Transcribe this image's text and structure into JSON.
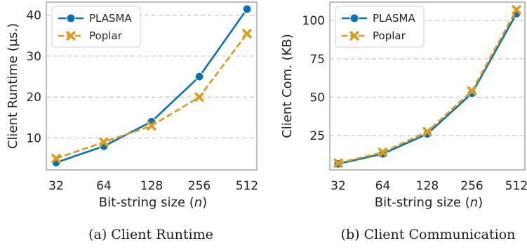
{
  "colors": {
    "plasma": "#0a72b2",
    "poplar": "#de9a1a",
    "grid": "#c8c8c8",
    "axis": "#9a9a9a"
  },
  "chart_data": [
    {
      "type": "line",
      "caption": "(a) Client Runtime",
      "xlabel_prefix": "Bit-string size (",
      "xlabel_var": "n",
      "xlabel_suffix": ")",
      "ylabel": "Client Runtime (µs.)",
      "categories": [
        "32",
        "64",
        "128",
        "256",
        "512"
      ],
      "yticks": [
        10,
        20,
        30,
        40
      ],
      "ylim": [
        2.2,
        43.2
      ],
      "grid": true,
      "legend_position": "top-left",
      "series": [
        {
          "name": "PLASMA",
          "marker": "circle",
          "values": [
            4.0,
            8.0,
            14.0,
            25.0,
            41.5
          ]
        },
        {
          "name": "Poplar",
          "marker": "x",
          "values": [
            5.0,
            9.0,
            13.0,
            20.0,
            35.5
          ]
        }
      ]
    },
    {
      "type": "line",
      "caption": "(b) Client Communication",
      "xlabel_prefix": "Bit-string size (",
      "xlabel_var": "n",
      "xlabel_suffix": ")",
      "ylabel": "Client Com. (KB)",
      "categories": [
        "32",
        "64",
        "128",
        "256",
        "512"
      ],
      "yticks": [
        25,
        50,
        75,
        100
      ],
      "ylim": [
        2.5,
        112
      ],
      "grid": true,
      "legend_position": "top-left",
      "series": [
        {
          "name": "PLASMA",
          "marker": "circle",
          "values": [
            6.5,
            13.0,
            26.0,
            52.5,
            104.5
          ]
        },
        {
          "name": "Poplar",
          "marker": "x",
          "values": [
            7.0,
            14.0,
            27.5,
            54.0,
            107.0
          ]
        }
      ]
    }
  ]
}
